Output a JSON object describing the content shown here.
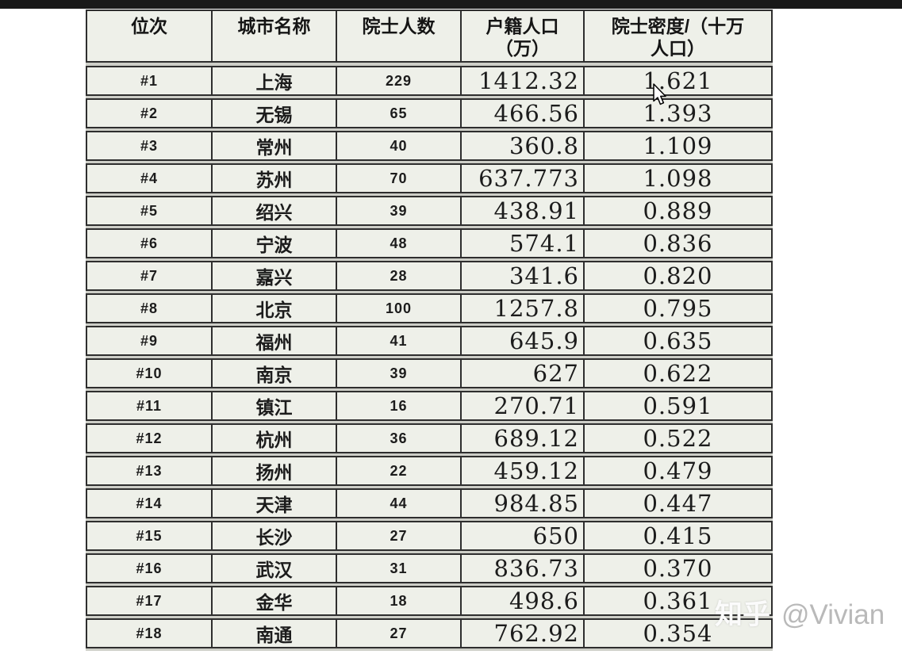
{
  "page": {
    "watermark": {
      "brand": "知乎",
      "handle": "@Vivian"
    }
  },
  "colors": {
    "top_bar": "#191919",
    "cell_background": "#eef0e9",
    "table_border": "#2e2e2e",
    "row_gap": "#cdcec7",
    "text": "#1c1c1c",
    "watermark_brand": "#fbfbfb",
    "watermark_handle": "#b9b9b9",
    "page_background": "#ffffff"
  },
  "table": {
    "header_lines": [
      [
        "位次"
      ],
      [
        "城市名称"
      ],
      [
        "院士人数"
      ],
      [
        "户籍人口",
        "（万）"
      ],
      [
        "院士密度/（十万",
        "人口）"
      ]
    ]
  },
  "chart_data": {
    "type": "table",
    "title": "",
    "columns": [
      "位次",
      "城市名称",
      "院士人数",
      "户籍人口（万）",
      "院士密度/（十万人口）"
    ],
    "rows": [
      [
        "#1",
        "上海",
        "229",
        "1412.32",
        "1.621"
      ],
      [
        "#2",
        "无锡",
        "65",
        "466.56",
        "1.393"
      ],
      [
        "#3",
        "常州",
        "40",
        "360.8",
        "1.109"
      ],
      [
        "#4",
        "苏州",
        "70",
        "637.773",
        "1.098"
      ],
      [
        "#5",
        "绍兴",
        "39",
        "438.91",
        "0.889"
      ],
      [
        "#6",
        "宁波",
        "48",
        "574.1",
        "0.836"
      ],
      [
        "#7",
        "嘉兴",
        "28",
        "341.6",
        "0.820"
      ],
      [
        "#8",
        "北京",
        "100",
        "1257.8",
        "0.795"
      ],
      [
        "#9",
        "福州",
        "41",
        "645.9",
        "0.635"
      ],
      [
        "#10",
        "南京",
        "39",
        "627",
        "0.622"
      ],
      [
        "#11",
        "镇江",
        "16",
        "270.71",
        "0.591"
      ],
      [
        "#12",
        "杭州",
        "36",
        "689.12",
        "0.522"
      ],
      [
        "#13",
        "扬州",
        "22",
        "459.12",
        "0.479"
      ],
      [
        "#14",
        "天津",
        "44",
        "984.85",
        "0.447"
      ],
      [
        "#15",
        "长沙",
        "27",
        "650",
        "0.415"
      ],
      [
        "#16",
        "武汉",
        "31",
        "836.73",
        "0.370"
      ],
      [
        "#17",
        "金华",
        "18",
        "498.6",
        "0.361"
      ],
      [
        "#18",
        "南通",
        "27",
        "762.92",
        "0.354"
      ]
    ]
  }
}
